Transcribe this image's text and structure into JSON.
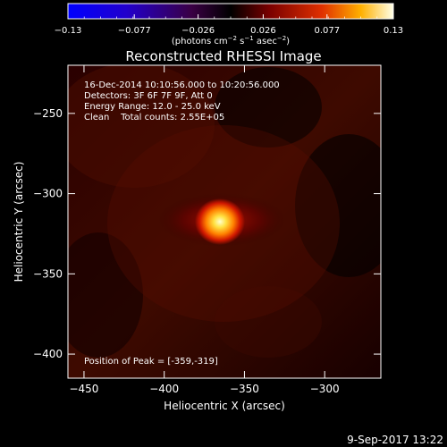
{
  "colorbar": {
    "ticks": [
      "-0.13",
      "-0.077",
      "-0.026",
      "0.026",
      "0.077",
      "0.13"
    ],
    "unit_label": "(photons cm",
    "unit_exp1": "−2",
    "unit_mid": " s",
    "unit_exp2": "−1",
    "unit_mid2": " asec",
    "unit_exp3": "−2",
    "unit_end": ")"
  },
  "chart_data": {
    "type": "heatmap",
    "title": "Reconstructed RHESSI Image",
    "xlabel": "Heliocentric X (arcsec)",
    "ylabel": "Heliocentric Y (arcsec)",
    "xlim": [
      -460,
      -265
    ],
    "ylim": [
      -415,
      -220
    ],
    "x_ticks": [
      -450,
      -400,
      -350,
      -300
    ],
    "x_tick_labels": [
      "−450",
      "−400",
      "−350",
      "−300"
    ],
    "y_ticks": [
      -250,
      -300,
      -350,
      -400
    ],
    "y_tick_labels": [
      "−250",
      "−300",
      "−350",
      "−400"
    ],
    "colorbar_range": [
      -0.13,
      0.13
    ],
    "peak": {
      "x": -359,
      "y": -319
    },
    "annotations": [
      "16-Dec-2014 10:10:56.000 to 10:20:56.000",
      "Detectors: 3F 6F 7F 9F, Att 0",
      "Energy Range: 12.0 - 25.0 keV",
      "Clean    Total counts: 2.55E+05"
    ],
    "peak_label": "Position of Peak = [-359,-319]"
  },
  "footer": {
    "date": "9-Sep-2017 13:22"
  }
}
